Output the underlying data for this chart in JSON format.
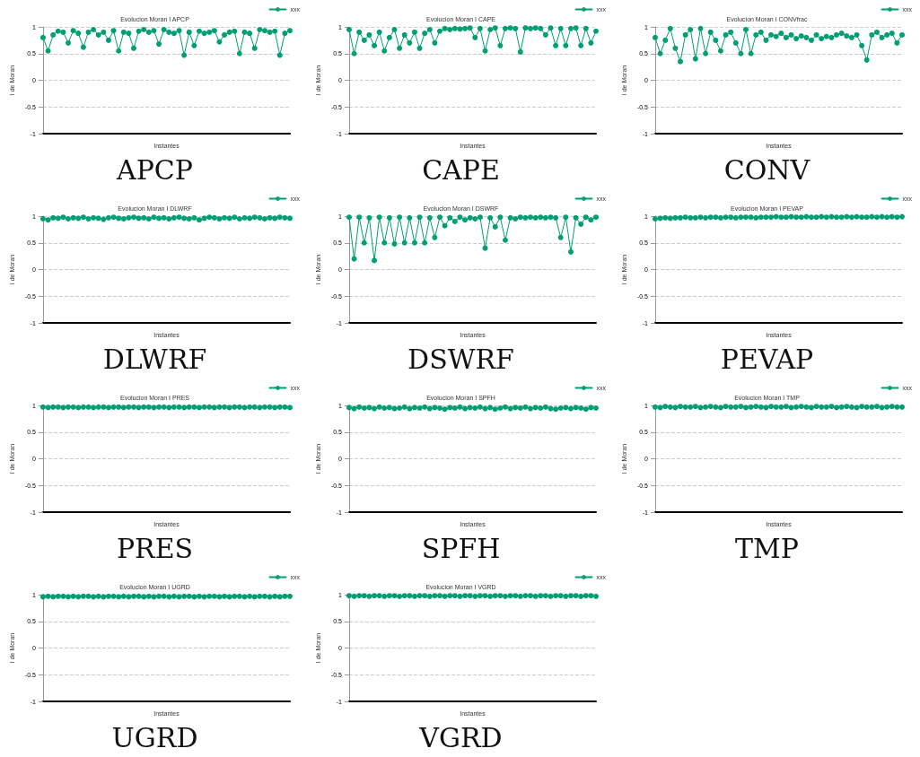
{
  "chart_data": [
    {
      "type": "line",
      "title": "Evolucion Moran I APCP",
      "xlabel": "Instantes",
      "ylabel": "I de Moran",
      "annotations": [
        "APCP"
      ],
      "categories": [
        null,
        null,
        null,
        null,
        null,
        null,
        null,
        null,
        null,
        null,
        null,
        null,
        null,
        null,
        null,
        null,
        null,
        null,
        null,
        null,
        null,
        null,
        null,
        null,
        null,
        null,
        null,
        null,
        null,
        null,
        null,
        null,
        null,
        null,
        null,
        null,
        null,
        null,
        null,
        null,
        null,
        null,
        null,
        null,
        null,
        null,
        null,
        null,
        null,
        null
      ],
      "series": [
        {
          "name": "xxx",
          "color": "#009e73",
          "values": [
            0.8,
            0.55,
            0.85,
            0.92,
            0.9,
            0.7,
            0.93,
            0.88,
            0.62,
            0.9,
            0.95,
            0.85,
            0.9,
            0.75,
            0.93,
            0.55,
            0.9,
            0.88,
            0.6,
            0.92,
            0.95,
            0.9,
            0.93,
            0.68,
            0.95,
            0.9,
            0.88,
            0.93,
            0.47,
            0.9,
            0.65,
            0.92,
            0.88,
            0.9,
            0.93,
            0.72,
            0.85,
            0.9,
            0.92,
            0.5,
            0.9,
            0.88,
            0.6,
            0.95,
            0.93,
            0.9,
            0.92,
            0.47,
            0.88,
            0.93
          ]
        }
      ],
      "ylim": [
        -1,
        1
      ],
      "yticks": [
        -1,
        -0.5,
        0,
        0.5,
        1
      ],
      "grid": "y",
      "legend": "top right",
      "marker": "circle",
      "line_style": "solid",
      "tick_labels": "y"
    },
    {
      "type": "line",
      "title": "Evolucion Moran I CAPE",
      "xlabel": "Instantes",
      "ylabel": "I de Moran",
      "annotations": [
        "CAPE"
      ],
      "categories": [
        null,
        null,
        null,
        null,
        null,
        null,
        null,
        null,
        null,
        null,
        null,
        null,
        null,
        null,
        null,
        null,
        null,
        null,
        null,
        null,
        null,
        null,
        null,
        null,
        null,
        null,
        null,
        null,
        null,
        null,
        null,
        null,
        null,
        null,
        null,
        null,
        null,
        null,
        null,
        null,
        null,
        null,
        null,
        null,
        null,
        null,
        null,
        null,
        null,
        null
      ],
      "series": [
        {
          "name": "xxx",
          "color": "#009e73",
          "values": [
            0.95,
            0.5,
            0.9,
            0.75,
            0.85,
            0.65,
            0.9,
            0.55,
            0.8,
            0.95,
            0.6,
            0.85,
            0.7,
            0.9,
            0.6,
            0.88,
            0.95,
            0.7,
            0.92,
            0.97,
            0.95,
            0.97,
            0.96,
            0.97,
            0.98,
            0.8,
            0.97,
            0.55,
            0.95,
            0.98,
            0.65,
            0.97,
            0.98,
            0.97,
            0.53,
            0.98,
            0.97,
            0.98,
            0.97,
            0.85,
            0.98,
            0.65,
            0.97,
            0.65,
            0.97,
            0.98,
            0.65,
            0.97,
            0.7,
            0.92
          ]
        }
      ],
      "ylim": [
        -1,
        1
      ],
      "yticks": [
        -1,
        -0.5,
        0,
        0.5,
        1
      ],
      "grid": "y",
      "legend": "top right",
      "marker": "circle",
      "line_style": "solid",
      "tick_labels": "y"
    },
    {
      "type": "line",
      "title": "Evolucion Moran I CONVfrac",
      "xlabel": "Instantes",
      "ylabel": "I de Moran",
      "annotations": [
        "CONV"
      ],
      "categories": [
        null,
        null,
        null,
        null,
        null,
        null,
        null,
        null,
        null,
        null,
        null,
        null,
        null,
        null,
        null,
        null,
        null,
        null,
        null,
        null,
        null,
        null,
        null,
        null,
        null,
        null,
        null,
        null,
        null,
        null,
        null,
        null,
        null,
        null,
        null,
        null,
        null,
        null,
        null,
        null,
        null,
        null,
        null,
        null,
        null,
        null,
        null,
        null,
        null,
        null
      ],
      "series": [
        {
          "name": "xxx",
          "color": "#009e73",
          "values": [
            0.8,
            0.5,
            0.75,
            0.97,
            0.6,
            0.35,
            0.85,
            0.95,
            0.4,
            0.97,
            0.5,
            0.9,
            0.75,
            0.55,
            0.85,
            0.9,
            0.7,
            0.5,
            0.95,
            0.5,
            0.85,
            0.9,
            0.75,
            0.85,
            0.82,
            0.88,
            0.8,
            0.85,
            0.78,
            0.83,
            0.8,
            0.75,
            0.85,
            0.78,
            0.82,
            0.8,
            0.85,
            0.88,
            0.83,
            0.8,
            0.85,
            0.65,
            0.38,
            0.85,
            0.9,
            0.8,
            0.85,
            0.88,
            0.7,
            0.85
          ]
        }
      ],
      "ylim": [
        -1,
        1
      ],
      "yticks": [
        -1,
        -0.5,
        0,
        0.5,
        1
      ],
      "grid": "y",
      "legend": "top right",
      "marker": "circle",
      "line_style": "solid",
      "tick_labels": "y"
    },
    {
      "type": "line",
      "title": "Evolucion Moran I DLWRF",
      "xlabel": "Instantes",
      "ylabel": "I de Moran",
      "annotations": [
        "DLWRF"
      ],
      "categories": [
        null,
        null,
        null,
        null,
        null,
        null,
        null,
        null,
        null,
        null,
        null,
        null,
        null,
        null,
        null,
        null,
        null,
        null,
        null,
        null,
        null,
        null,
        null,
        null,
        null,
        null,
        null,
        null,
        null,
        null,
        null,
        null,
        null,
        null,
        null,
        null,
        null,
        null,
        null,
        null,
        null,
        null,
        null,
        null,
        null,
        null,
        null,
        null,
        null,
        null
      ],
      "series": [
        {
          "name": "xxx",
          "color": "#009e73",
          "values": [
            0.95,
            0.93,
            0.97,
            0.96,
            0.98,
            0.95,
            0.97,
            0.96,
            0.98,
            0.95,
            0.97,
            0.96,
            0.94,
            0.97,
            0.98,
            0.96,
            0.95,
            0.97,
            0.98,
            0.96,
            0.97,
            0.95,
            0.98,
            0.96,
            0.97,
            0.95,
            0.97,
            0.98,
            0.96,
            0.95,
            0.97,
            0.93,
            0.96,
            0.98,
            0.97,
            0.95,
            0.97,
            0.96,
            0.98,
            0.95,
            0.97,
            0.96,
            0.98,
            0.97,
            0.95,
            0.97,
            0.96,
            0.98,
            0.97,
            0.96
          ]
        }
      ],
      "ylim": [
        -1,
        1
      ],
      "yticks": [
        -1,
        -0.5,
        0,
        0.5,
        1
      ],
      "grid": "y",
      "legend": "top right",
      "marker": "circle",
      "line_style": "solid",
      "tick_labels": "y"
    },
    {
      "type": "line",
      "title": "Evolucion Moran I DSWRF",
      "xlabel": "Instantes",
      "ylabel": "I de Moran",
      "annotations": [
        "DSWRF"
      ],
      "categories": [
        null,
        null,
        null,
        null,
        null,
        null,
        null,
        null,
        null,
        null,
        null,
        null,
        null,
        null,
        null,
        null,
        null,
        null,
        null,
        null,
        null,
        null,
        null,
        null,
        null,
        null,
        null,
        null,
        null,
        null,
        null,
        null,
        null,
        null,
        null,
        null,
        null,
        null,
        null,
        null,
        null,
        null,
        null,
        null,
        null,
        null,
        null,
        null,
        null,
        null
      ],
      "series": [
        {
          "name": "xxx",
          "color": "#009e73",
          "values": [
            0.98,
            0.2,
            0.98,
            0.5,
            0.97,
            0.17,
            0.98,
            0.5,
            0.97,
            0.48,
            0.98,
            0.5,
            0.97,
            0.5,
            0.98,
            0.5,
            0.97,
            0.6,
            0.98,
            0.82,
            0.97,
            0.9,
            0.98,
            0.93,
            0.97,
            0.95,
            0.98,
            0.4,
            0.97,
            0.8,
            0.98,
            0.55,
            0.97,
            0.95,
            0.98,
            0.97,
            0.98,
            0.97,
            0.98,
            0.97,
            0.98,
            0.97,
            0.6,
            0.98,
            0.33,
            0.97,
            0.85,
            0.98,
            0.93,
            0.98
          ]
        }
      ],
      "ylim": [
        -1,
        1
      ],
      "yticks": [
        -1,
        -0.5,
        0,
        0.5,
        1
      ],
      "grid": "y",
      "legend": "top right",
      "marker": "circle",
      "line_style": "solid",
      "tick_labels": "y"
    },
    {
      "type": "line",
      "title": "Evolucion Moran I PEVAP",
      "xlabel": "Instantes",
      "ylabel": "I de Moran",
      "annotations": [
        "PEVAP"
      ],
      "categories": [
        null,
        null,
        null,
        null,
        null,
        null,
        null,
        null,
        null,
        null,
        null,
        null,
        null,
        null,
        null,
        null,
        null,
        null,
        null,
        null,
        null,
        null,
        null,
        null,
        null,
        null,
        null,
        null,
        null,
        null,
        null,
        null,
        null,
        null,
        null,
        null,
        null,
        null,
        null,
        null,
        null,
        null,
        null,
        null,
        null,
        null,
        null,
        null,
        null,
        null
      ],
      "series": [
        {
          "name": "xxx",
          "color": "#009e73",
          "values": [
            0.95,
            0.96,
            0.97,
            0.96,
            0.97,
            0.97,
            0.98,
            0.97,
            0.97,
            0.98,
            0.97,
            0.98,
            0.98,
            0.97,
            0.98,
            0.98,
            0.97,
            0.98,
            0.98,
            0.98,
            0.97,
            0.98,
            0.98,
            0.98,
            0.99,
            0.98,
            0.98,
            0.99,
            0.98,
            0.98,
            0.99,
            0.98,
            0.98,
            0.99,
            0.98,
            0.99,
            0.98,
            0.98,
            0.99,
            0.98,
            0.99,
            0.98,
            0.98,
            0.99,
            0.98,
            0.99,
            0.98,
            0.99,
            0.98,
            0.99
          ]
        }
      ],
      "ylim": [
        -1,
        1
      ],
      "yticks": [
        -1,
        -0.5,
        0,
        0.5,
        1
      ],
      "grid": "y",
      "legend": "top right",
      "marker": "circle",
      "line_style": "solid",
      "tick_labels": "y"
    },
    {
      "type": "line",
      "title": "Evolucion Moran I PRES",
      "xlabel": "Instantes",
      "ylabel": "I de Moran",
      "annotations": [
        "PRES"
      ],
      "categories": [
        null,
        null,
        null,
        null,
        null,
        null,
        null,
        null,
        null,
        null,
        null,
        null,
        null,
        null,
        null,
        null,
        null,
        null,
        null,
        null,
        null,
        null,
        null,
        null,
        null,
        null,
        null,
        null,
        null,
        null,
        null,
        null,
        null,
        null,
        null,
        null,
        null,
        null,
        null,
        null,
        null,
        null,
        null,
        null,
        null,
        null,
        null,
        null,
        null,
        null
      ],
      "series": [
        {
          "name": "xxx",
          "color": "#009e73",
          "values": [
            0.97,
            0.96,
            0.97,
            0.97,
            0.96,
            0.97,
            0.97,
            0.96,
            0.97,
            0.97,
            0.96,
            0.97,
            0.97,
            0.96,
            0.97,
            0.97,
            0.96,
            0.97,
            0.97,
            0.96,
            0.97,
            0.97,
            0.96,
            0.97,
            0.97,
            0.96,
            0.97,
            0.97,
            0.96,
            0.97,
            0.97,
            0.96,
            0.97,
            0.97,
            0.96,
            0.97,
            0.97,
            0.96,
            0.97,
            0.97,
            0.96,
            0.97,
            0.97,
            0.96,
            0.97,
            0.97,
            0.96,
            0.97,
            0.97,
            0.96
          ]
        }
      ],
      "ylim": [
        -1,
        1
      ],
      "yticks": [
        -1,
        -0.5,
        0,
        0.5,
        1
      ],
      "grid": "y",
      "legend": "top right",
      "marker": "circle",
      "line_style": "solid",
      "tick_labels": "y"
    },
    {
      "type": "line",
      "title": "Evolucion Moran I SPFH",
      "xlabel": "Instantes",
      "ylabel": "I de Moran",
      "annotations": [
        "SPFH"
      ],
      "categories": [
        null,
        null,
        null,
        null,
        null,
        null,
        null,
        null,
        null,
        null,
        null,
        null,
        null,
        null,
        null,
        null,
        null,
        null,
        null,
        null,
        null,
        null,
        null,
        null,
        null,
        null,
        null,
        null,
        null,
        null,
        null,
        null,
        null,
        null,
        null,
        null,
        null,
        null,
        null,
        null,
        null,
        null,
        null,
        null,
        null,
        null,
        null,
        null,
        null,
        null
      ],
      "series": [
        {
          "name": "xxx",
          "color": "#009e73",
          "values": [
            0.96,
            0.94,
            0.97,
            0.95,
            0.96,
            0.94,
            0.97,
            0.95,
            0.96,
            0.94,
            0.95,
            0.97,
            0.94,
            0.96,
            0.95,
            0.97,
            0.94,
            0.96,
            0.95,
            0.93,
            0.96,
            0.95,
            0.97,
            0.94,
            0.96,
            0.95,
            0.97,
            0.94,
            0.96,
            0.93,
            0.95,
            0.97,
            0.94,
            0.96,
            0.95,
            0.97,
            0.94,
            0.96,
            0.95,
            0.97,
            0.94,
            0.93,
            0.95,
            0.96,
            0.94,
            0.96,
            0.95,
            0.93,
            0.96,
            0.95
          ]
        }
      ],
      "ylim": [
        -1,
        1
      ],
      "yticks": [
        -1,
        -0.5,
        0,
        0.5,
        1
      ],
      "grid": "y",
      "legend": "top right",
      "marker": "circle",
      "line_style": "solid",
      "tick_labels": "y"
    },
    {
      "type": "line",
      "title": "Evolucion Moran I TMP",
      "xlabel": "Instantes",
      "ylabel": "I de Moran",
      "annotations": [
        "TMP"
      ],
      "categories": [
        null,
        null,
        null,
        null,
        null,
        null,
        null,
        null,
        null,
        null,
        null,
        null,
        null,
        null,
        null,
        null,
        null,
        null,
        null,
        null,
        null,
        null,
        null,
        null,
        null,
        null,
        null,
        null,
        null,
        null,
        null,
        null,
        null,
        null,
        null,
        null,
        null,
        null,
        null,
        null,
        null,
        null,
        null,
        null,
        null,
        null,
        null,
        null,
        null,
        null
      ],
      "series": [
        {
          "name": "xxx",
          "color": "#009e73",
          "values": [
            0.97,
            0.96,
            0.98,
            0.97,
            0.96,
            0.98,
            0.97,
            0.97,
            0.98,
            0.96,
            0.97,
            0.98,
            0.97,
            0.96,
            0.98,
            0.97,
            0.97,
            0.98,
            0.96,
            0.97,
            0.98,
            0.97,
            0.96,
            0.98,
            0.97,
            0.97,
            0.98,
            0.96,
            0.97,
            0.98,
            0.97,
            0.96,
            0.98,
            0.97,
            0.97,
            0.98,
            0.96,
            0.97,
            0.98,
            0.97,
            0.96,
            0.98,
            0.97,
            0.97,
            0.98,
            0.96,
            0.97,
            0.98,
            0.97,
            0.97
          ]
        }
      ],
      "ylim": [
        -1,
        1
      ],
      "yticks": [
        -1,
        -0.5,
        0,
        0.5,
        1
      ],
      "grid": "y",
      "legend": "top right",
      "marker": "circle",
      "line_style": "solid",
      "tick_labels": "y"
    },
    {
      "type": "line",
      "title": "Evolucion Moran I UGRD",
      "xlabel": "Instantes",
      "ylabel": "I de Moran",
      "annotations": [
        "UGRD"
      ],
      "categories": [
        null,
        null,
        null,
        null,
        null,
        null,
        null,
        null,
        null,
        null,
        null,
        null,
        null,
        null,
        null,
        null,
        null,
        null,
        null,
        null,
        null,
        null,
        null,
        null,
        null,
        null,
        null,
        null,
        null,
        null,
        null,
        null,
        null,
        null,
        null,
        null,
        null,
        null,
        null,
        null,
        null,
        null,
        null,
        null,
        null,
        null,
        null,
        null,
        null,
        null
      ],
      "series": [
        {
          "name": "xxx",
          "color": "#009e73",
          "values": [
            0.96,
            0.97,
            0.96,
            0.97,
            0.97,
            0.96,
            0.97,
            0.96,
            0.97,
            0.97,
            0.96,
            0.97,
            0.96,
            0.97,
            0.97,
            0.96,
            0.97,
            0.96,
            0.97,
            0.97,
            0.96,
            0.97,
            0.96,
            0.97,
            0.97,
            0.96,
            0.97,
            0.96,
            0.97,
            0.97,
            0.96,
            0.97,
            0.96,
            0.97,
            0.97,
            0.96,
            0.97,
            0.96,
            0.97,
            0.97,
            0.96,
            0.97,
            0.96,
            0.97,
            0.97,
            0.96,
            0.97,
            0.96,
            0.97,
            0.97
          ]
        }
      ],
      "ylim": [
        -1,
        1
      ],
      "yticks": [
        -1,
        -0.5,
        0,
        0.5,
        1
      ],
      "grid": "y",
      "legend": "top right",
      "marker": "circle",
      "line_style": "solid",
      "tick_labels": "y"
    },
    {
      "type": "line",
      "title": "Evolucion Moran I VGRD",
      "xlabel": "Instantes",
      "ylabel": "I de Moran",
      "annotations": [
        "VGRD"
      ],
      "categories": [
        null,
        null,
        null,
        null,
        null,
        null,
        null,
        null,
        null,
        null,
        null,
        null,
        null,
        null,
        null,
        null,
        null,
        null,
        null,
        null,
        null,
        null,
        null,
        null,
        null,
        null,
        null,
        null,
        null,
        null,
        null,
        null,
        null,
        null,
        null,
        null,
        null,
        null,
        null,
        null,
        null,
        null,
        null,
        null,
        null,
        null,
        null,
        null,
        null,
        null
      ],
      "series": [
        {
          "name": "xxx",
          "color": "#009e73",
          "values": [
            0.98,
            0.97,
            0.98,
            0.98,
            0.97,
            0.98,
            0.98,
            0.97,
            0.98,
            0.98,
            0.97,
            0.98,
            0.98,
            0.97,
            0.98,
            0.98,
            0.97,
            0.98,
            0.98,
            0.97,
            0.98,
            0.98,
            0.97,
            0.98,
            0.98,
            0.97,
            0.98,
            0.98,
            0.97,
            0.98,
            0.98,
            0.97,
            0.98,
            0.98,
            0.97,
            0.98,
            0.98,
            0.97,
            0.98,
            0.98,
            0.97,
            0.98,
            0.98,
            0.97,
            0.98,
            0.98,
            0.97,
            0.98,
            0.98,
            0.97
          ]
        }
      ],
      "ylim": [
        -1,
        1
      ],
      "yticks": [
        -1,
        -0.5,
        0,
        0.5,
        1
      ],
      "grid": "y",
      "legend": "top right",
      "marker": "circle",
      "line_style": "solid",
      "tick_labels": "y"
    }
  ]
}
